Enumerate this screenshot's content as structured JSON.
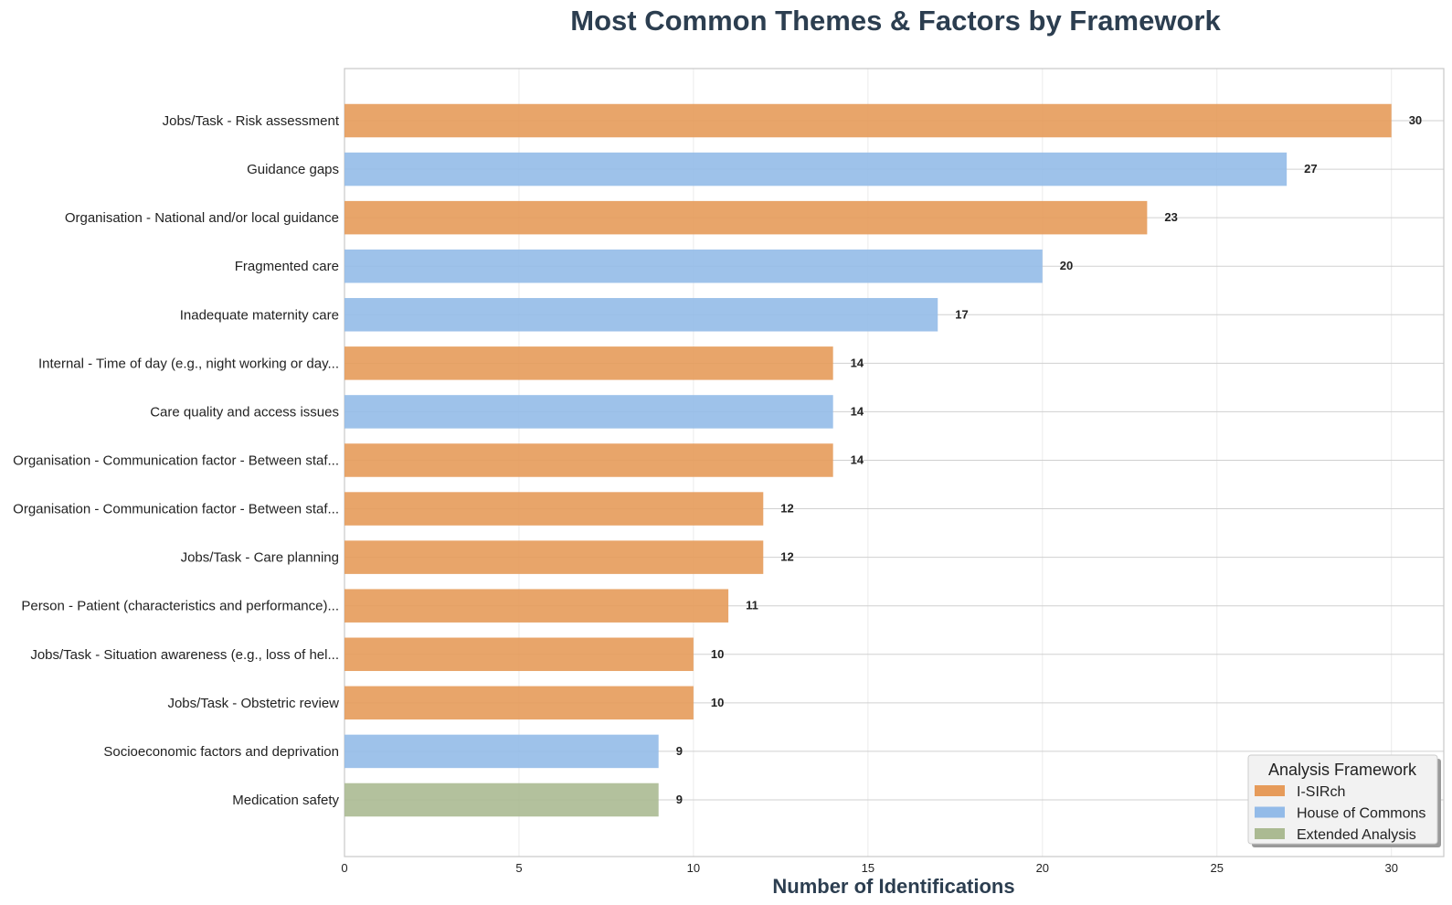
{
  "chart_data": {
    "type": "bar",
    "orientation": "horizontal",
    "title": "Most Common Themes & Factors by Framework",
    "xlabel": "Number of Identifications",
    "ylabel": "",
    "xlim": [
      0,
      31.5
    ],
    "xticks": [
      0,
      5,
      10,
      15,
      20,
      25,
      30
    ],
    "grid": true,
    "legend": {
      "title": "Analysis Framework",
      "placement": "bottom-right",
      "entries": [
        {
          "name": "I-SIRch",
          "color": "#e69b5a"
        },
        {
          "name": "House of Commons",
          "color": "#93bbe8"
        },
        {
          "name": "Extended Analysis",
          "color": "#abba92"
        }
      ]
    },
    "categories": [
      "Jobs/Task - Risk assessment",
      "Guidance gaps",
      "Organisation - National and/or local guidance",
      "Fragmented care",
      "Inadequate maternity care",
      "Internal - Time of day (e.g., night working or day...",
      "Care quality and access issues",
      "Organisation - Communication factor - Between staf...",
      "Organisation - Communication factor - Between staf...",
      "Jobs/Task - Care planning",
      "Person - Patient (characteristics and performance)...",
      "Jobs/Task - Situation awareness (e.g., loss of hel...",
      "Jobs/Task - Obstetric review",
      "Socioeconomic factors and deprivation",
      "Medication safety"
    ],
    "values": [
      30,
      27,
      23,
      20,
      17,
      14,
      14,
      14,
      12,
      12,
      11,
      10,
      10,
      9,
      9
    ],
    "frameworks": [
      "I-SIRch",
      "House of Commons",
      "I-SIRch",
      "House of Commons",
      "House of Commons",
      "I-SIRch",
      "House of Commons",
      "I-SIRch",
      "I-SIRch",
      "I-SIRch",
      "I-SIRch",
      "I-SIRch",
      "I-SIRch",
      "House of Commons",
      "Extended Analysis"
    ]
  }
}
